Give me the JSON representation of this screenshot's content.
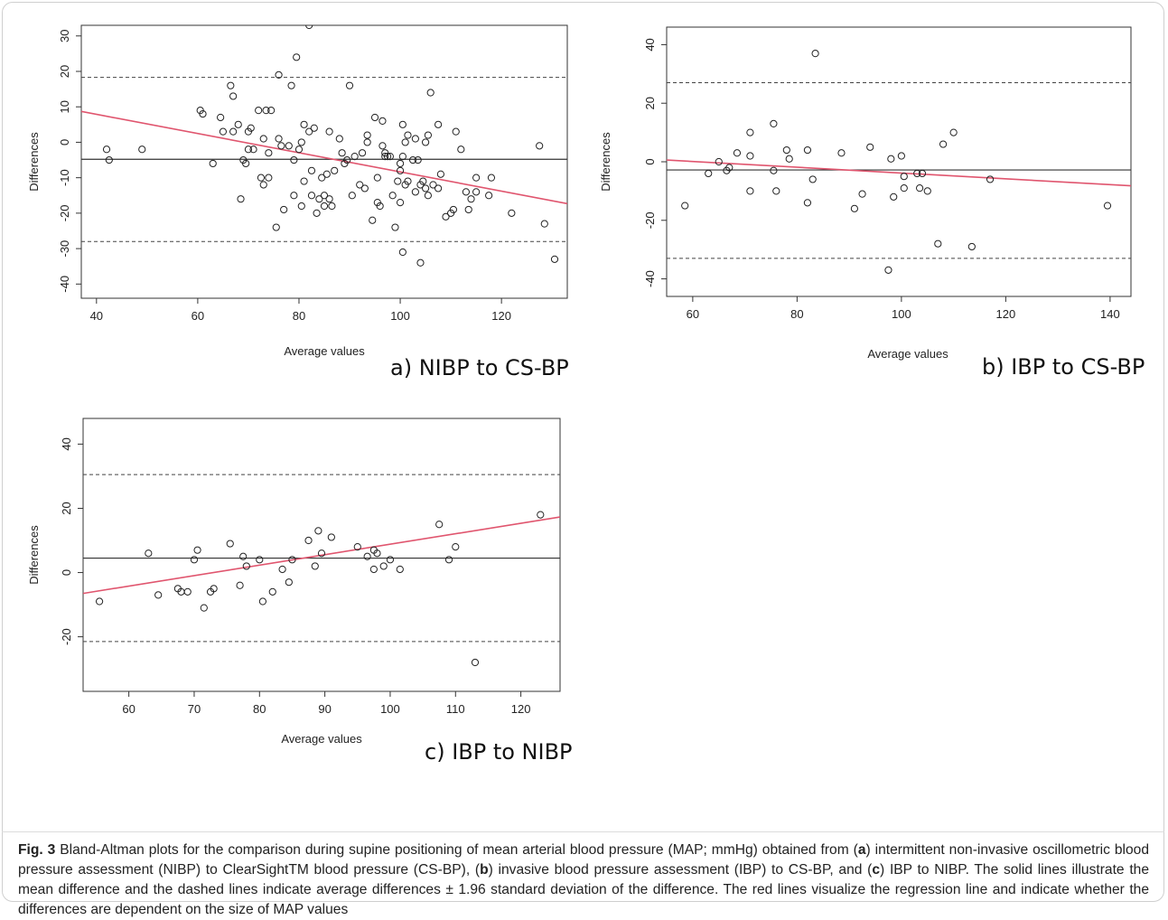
{
  "chart_data": [
    {
      "type": "scatter",
      "panel_label": "a) NIBP to CS-BP",
      "xlabel": "Average values",
      "ylabel": "Differences",
      "xlim": [
        37,
        133
      ],
      "ylim": [
        -44,
        33
      ],
      "xticks": [
        40,
        60,
        80,
        100,
        120
      ],
      "yticks": [
        -40,
        -30,
        -20,
        -10,
        0,
        10,
        20,
        30
      ],
      "mean_difference": -4.8,
      "limits_of_agreement": [
        -28,
        18.3
      ],
      "regression": {
        "x": [
          37,
          133
        ],
        "y": [
          8.7,
          -17.3
        ]
      },
      "points": [
        [
          42,
          -2
        ],
        [
          42.5,
          -5
        ],
        [
          49,
          -2
        ],
        [
          60.5,
          9
        ],
        [
          61,
          8
        ],
        [
          63,
          -6
        ],
        [
          64.5,
          7
        ],
        [
          65,
          3
        ],
        [
          66.5,
          16
        ],
        [
          67,
          3
        ],
        [
          67,
          13
        ],
        [
          68,
          5
        ],
        [
          68.5,
          -16
        ],
        [
          69,
          -5
        ],
        [
          69.5,
          -6
        ],
        [
          70,
          -2
        ],
        [
          70,
          3
        ],
        [
          70.5,
          4
        ],
        [
          71,
          -2
        ],
        [
          72,
          9
        ],
        [
          72.5,
          -10
        ],
        [
          73,
          1
        ],
        [
          73,
          -12
        ],
        [
          73.5,
          9
        ],
        [
          74,
          -10
        ],
        [
          74,
          -3
        ],
        [
          74.5,
          9
        ],
        [
          75.5,
          -24
        ],
        [
          76,
          19
        ],
        [
          76,
          1
        ],
        [
          76.5,
          -1
        ],
        [
          77,
          -19
        ],
        [
          78,
          -1
        ],
        [
          78.5,
          16
        ],
        [
          79,
          -15
        ],
        [
          79,
          -5
        ],
        [
          79.5,
          24
        ],
        [
          80,
          -2
        ],
        [
          80.5,
          -18
        ],
        [
          80.5,
          0
        ],
        [
          81,
          5
        ],
        [
          81,
          -11
        ],
        [
          82,
          33
        ],
        [
          82,
          3
        ],
        [
          82.5,
          -15
        ],
        [
          82.5,
          -8
        ],
        [
          83,
          4
        ],
        [
          83.5,
          -20
        ],
        [
          84,
          -16
        ],
        [
          84.5,
          -10
        ],
        [
          85,
          -18
        ],
        [
          85,
          -15
        ],
        [
          85.5,
          -9
        ],
        [
          86,
          -16
        ],
        [
          86,
          3
        ],
        [
          86.5,
          -18
        ],
        [
          87,
          -8
        ],
        [
          88,
          1
        ],
        [
          88.5,
          -3
        ],
        [
          89,
          -6
        ],
        [
          89.5,
          -5
        ],
        [
          90,
          16
        ],
        [
          90.5,
          -15
        ],
        [
          91,
          -4
        ],
        [
          92,
          -12
        ],
        [
          92.5,
          -3
        ],
        [
          93,
          -13
        ],
        [
          93.5,
          2
        ],
        [
          93.5,
          0
        ],
        [
          94.5,
          -22
        ],
        [
          95,
          7
        ],
        [
          95.5,
          -17
        ],
        [
          95.5,
          -10
        ],
        [
          96,
          -18
        ],
        [
          96.5,
          6
        ],
        [
          96.5,
          -1
        ],
        [
          97,
          -4
        ],
        [
          97,
          -3
        ],
        [
          97.5,
          -4
        ],
        [
          98,
          -4
        ],
        [
          98.5,
          -15
        ],
        [
          99,
          -24
        ],
        [
          99.5,
          -11
        ],
        [
          100,
          -17
        ],
        [
          100,
          -8
        ],
        [
          100,
          -6
        ],
        [
          100.5,
          -4
        ],
        [
          100.5,
          5
        ],
        [
          100.5,
          -31
        ],
        [
          101,
          -12
        ],
        [
          101,
          0
        ],
        [
          101.5,
          -11
        ],
        [
          101.5,
          2
        ],
        [
          102.5,
          -5
        ],
        [
          103,
          -14
        ],
        [
          103,
          1
        ],
        [
          103.5,
          -5
        ],
        [
          104,
          -34
        ],
        [
          104,
          -12
        ],
        [
          104.5,
          -11
        ],
        [
          105,
          0
        ],
        [
          105,
          -13
        ],
        [
          105.5,
          -15
        ],
        [
          105.5,
          2
        ],
        [
          106,
          14
        ],
        [
          106.5,
          -12
        ],
        [
          107.5,
          -13
        ],
        [
          107.5,
          5
        ],
        [
          108,
          -9
        ],
        [
          109,
          -21
        ],
        [
          110,
          -20
        ],
        [
          110.5,
          -19
        ],
        [
          111,
          3
        ],
        [
          112,
          -2
        ],
        [
          113,
          -14
        ],
        [
          113.5,
          -19
        ],
        [
          114,
          -16
        ],
        [
          115,
          -14
        ],
        [
          115,
          -10
        ],
        [
          117.5,
          -15
        ],
        [
          118,
          -10
        ],
        [
          122,
          -20
        ],
        [
          127.5,
          -1
        ],
        [
          128.5,
          -23
        ],
        [
          130.5,
          -33
        ]
      ]
    },
    {
      "type": "scatter",
      "panel_label": "b) IBP to CS-BP",
      "xlabel": "Average values",
      "ylabel": "Differences",
      "xlim": [
        55,
        144
      ],
      "ylim": [
        -46,
        46
      ],
      "xticks": [
        60,
        80,
        100,
        120,
        140
      ],
      "yticks": [
        -40,
        -20,
        0,
        20,
        40
      ],
      "mean_difference": -2.8,
      "limits_of_agreement": [
        -33,
        27
      ],
      "regression": {
        "x": [
          55,
          144
        ],
        "y": [
          0.6,
          -8.2
        ]
      },
      "points": [
        [
          58.5,
          -15
        ],
        [
          63,
          -4
        ],
        [
          65,
          0
        ],
        [
          66.5,
          -3
        ],
        [
          67,
          -2
        ],
        [
          68.5,
          3
        ],
        [
          71,
          10
        ],
        [
          71,
          2
        ],
        [
          71,
          -10
        ],
        [
          75.5,
          13
        ],
        [
          75.5,
          -3
        ],
        [
          76,
          -10
        ],
        [
          78,
          4
        ],
        [
          78.5,
          1
        ],
        [
          82,
          4
        ],
        [
          82,
          -14
        ],
        [
          83,
          -6
        ],
        [
          83.5,
          37
        ],
        [
          88.5,
          3
        ],
        [
          91,
          -16
        ],
        [
          92.5,
          -11
        ],
        [
          94,
          5
        ],
        [
          97.5,
          -37
        ],
        [
          98,
          1
        ],
        [
          98.5,
          -12
        ],
        [
          100,
          2
        ],
        [
          100.5,
          -9
        ],
        [
          100.5,
          -5
        ],
        [
          103,
          -4
        ],
        [
          103.5,
          -9
        ],
        [
          104,
          -4
        ],
        [
          105,
          -10
        ],
        [
          107,
          -28
        ],
        [
          108,
          6
        ],
        [
          110,
          10
        ],
        [
          113.5,
          -29
        ],
        [
          117,
          -6
        ],
        [
          139.5,
          -15
        ]
      ]
    },
    {
      "type": "scatter",
      "panel_label": "c) IBP to NIBP",
      "xlabel": "Average values",
      "ylabel": "Differences",
      "xlim": [
        53,
        126
      ],
      "ylim": [
        -37,
        48
      ],
      "xticks": [
        60,
        70,
        80,
        90,
        100,
        110,
        120
      ],
      "yticks": [
        -20,
        0,
        20,
        40
      ],
      "mean_difference": 4.5,
      "limits_of_agreement": [
        -21.5,
        30.5
      ],
      "regression": {
        "x": [
          53,
          126
        ],
        "y": [
          -6.5,
          17.3
        ]
      },
      "points": [
        [
          55.5,
          -9
        ],
        [
          63,
          6
        ],
        [
          64.5,
          -7
        ],
        [
          67.5,
          -5
        ],
        [
          68,
          -6
        ],
        [
          69,
          -6
        ],
        [
          70,
          4
        ],
        [
          70.5,
          7
        ],
        [
          71.5,
          -11
        ],
        [
          72.5,
          -6
        ],
        [
          73,
          -5
        ],
        [
          75.5,
          9
        ],
        [
          77,
          -4
        ],
        [
          77.5,
          5
        ],
        [
          78,
          2
        ],
        [
          80,
          4
        ],
        [
          80.5,
          -9
        ],
        [
          82,
          -6
        ],
        [
          83.5,
          1
        ],
        [
          84.5,
          -3
        ],
        [
          85,
          4
        ],
        [
          87.5,
          10
        ],
        [
          88.5,
          2
        ],
        [
          89,
          13
        ],
        [
          89.5,
          6
        ],
        [
          91,
          11
        ],
        [
          95,
          8
        ],
        [
          96.5,
          5
        ],
        [
          97.5,
          1
        ],
        [
          97.5,
          7
        ],
        [
          98,
          6
        ],
        [
          99,
          2
        ],
        [
          100,
          4
        ],
        [
          101.5,
          1
        ],
        [
          107.5,
          15
        ],
        [
          109,
          4
        ],
        [
          110,
          8
        ],
        [
          113,
          -28
        ],
        [
          123,
          18
        ]
      ]
    }
  ],
  "caption": {
    "fig_label": "Fig. 3",
    "t1": " Bland-Altman plots for the comparison during supine positioning of mean arterial blood pressure (MAP; mmHg) obtained from (",
    "a": "a",
    "t2": ") intermittent non-invasive oscillometric blood pressure assessment (NIBP) to ClearSightTM blood pressure (CS-BP), (",
    "b": "b",
    "t3": ") invasive blood pressure assessment (IBP) to CS-BP, and (",
    "c": "c",
    "t4": ") IBP to NIBP. The solid lines illustrate the mean difference and the dashed lines indicate average differences ± 1.96 standard deviation of the difference. The red lines visualize the regression line and indicate whether the differences are dependent on the size of MAP values"
  },
  "colors": {
    "regression": "#e0556e",
    "points": "#222222",
    "lines": "#333333"
  }
}
